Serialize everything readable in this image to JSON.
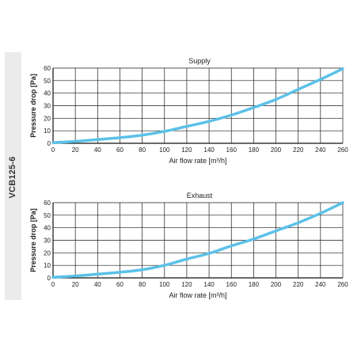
{
  "side_label": "VCB125-6",
  "series_color": "#5bc1e8",
  "chart_data": [
    {
      "type": "line",
      "title": "Supply",
      "xlabel": "Air flow rate [m³/h]",
      "ylabel": "Pressure drop [Pa]",
      "xlim": [
        0,
        260
      ],
      "ylim": [
        0,
        60
      ],
      "xticks": [
        0,
        20,
        40,
        60,
        80,
        100,
        120,
        140,
        160,
        180,
        200,
        220,
        240,
        260
      ],
      "yticks": [
        0,
        10,
        20,
        30,
        40,
        50,
        60
      ],
      "xtick_labels": [
        "0",
        "20",
        "40",
        "60",
        "80",
        "100",
        "120",
        "140",
        "160",
        "180",
        "200",
        "220",
        "240",
        "260"
      ],
      "ytick_labels": [
        "0",
        "10",
        "20",
        "30",
        "40",
        "50",
        "60"
      ],
      "grid": true,
      "x": [
        0,
        20,
        40,
        60,
        80,
        100,
        120,
        140,
        160,
        180,
        200,
        220,
        240,
        260
      ],
      "y": [
        0.5,
        1.5,
        3,
        4.5,
        6.5,
        9.5,
        13.5,
        17.5,
        22.5,
        28.5,
        35,
        43,
        51,
        59.5
      ]
    },
    {
      "type": "line",
      "title": "Exhaust",
      "xlabel": "Air flow rate [m³/h]",
      "ylabel": "Pressure drop [Pa]",
      "xlim": [
        0,
        260
      ],
      "ylim": [
        0,
        60
      ],
      "xticks": [
        0,
        20,
        40,
        60,
        80,
        100,
        120,
        140,
        160,
        180,
        200,
        220,
        240,
        260
      ],
      "yticks": [
        0,
        10,
        20,
        30,
        40,
        50,
        60
      ],
      "xtick_labels": [
        "0",
        "20",
        "40",
        "60",
        "80",
        "100",
        "120",
        "140",
        "160",
        "180",
        "200",
        "220",
        "240",
        "260"
      ],
      "ytick_labels": [
        "0",
        "10",
        "20",
        "30",
        "40",
        "50",
        "60"
      ],
      "grid": true,
      "x": [
        0,
        20,
        40,
        60,
        80,
        100,
        120,
        140,
        160,
        180,
        200,
        220,
        240,
        260
      ],
      "y": [
        0.5,
        1.5,
        3,
        4.5,
        6.5,
        10,
        15,
        19.5,
        25.5,
        31,
        37.5,
        44,
        51.5,
        60
      ]
    }
  ]
}
